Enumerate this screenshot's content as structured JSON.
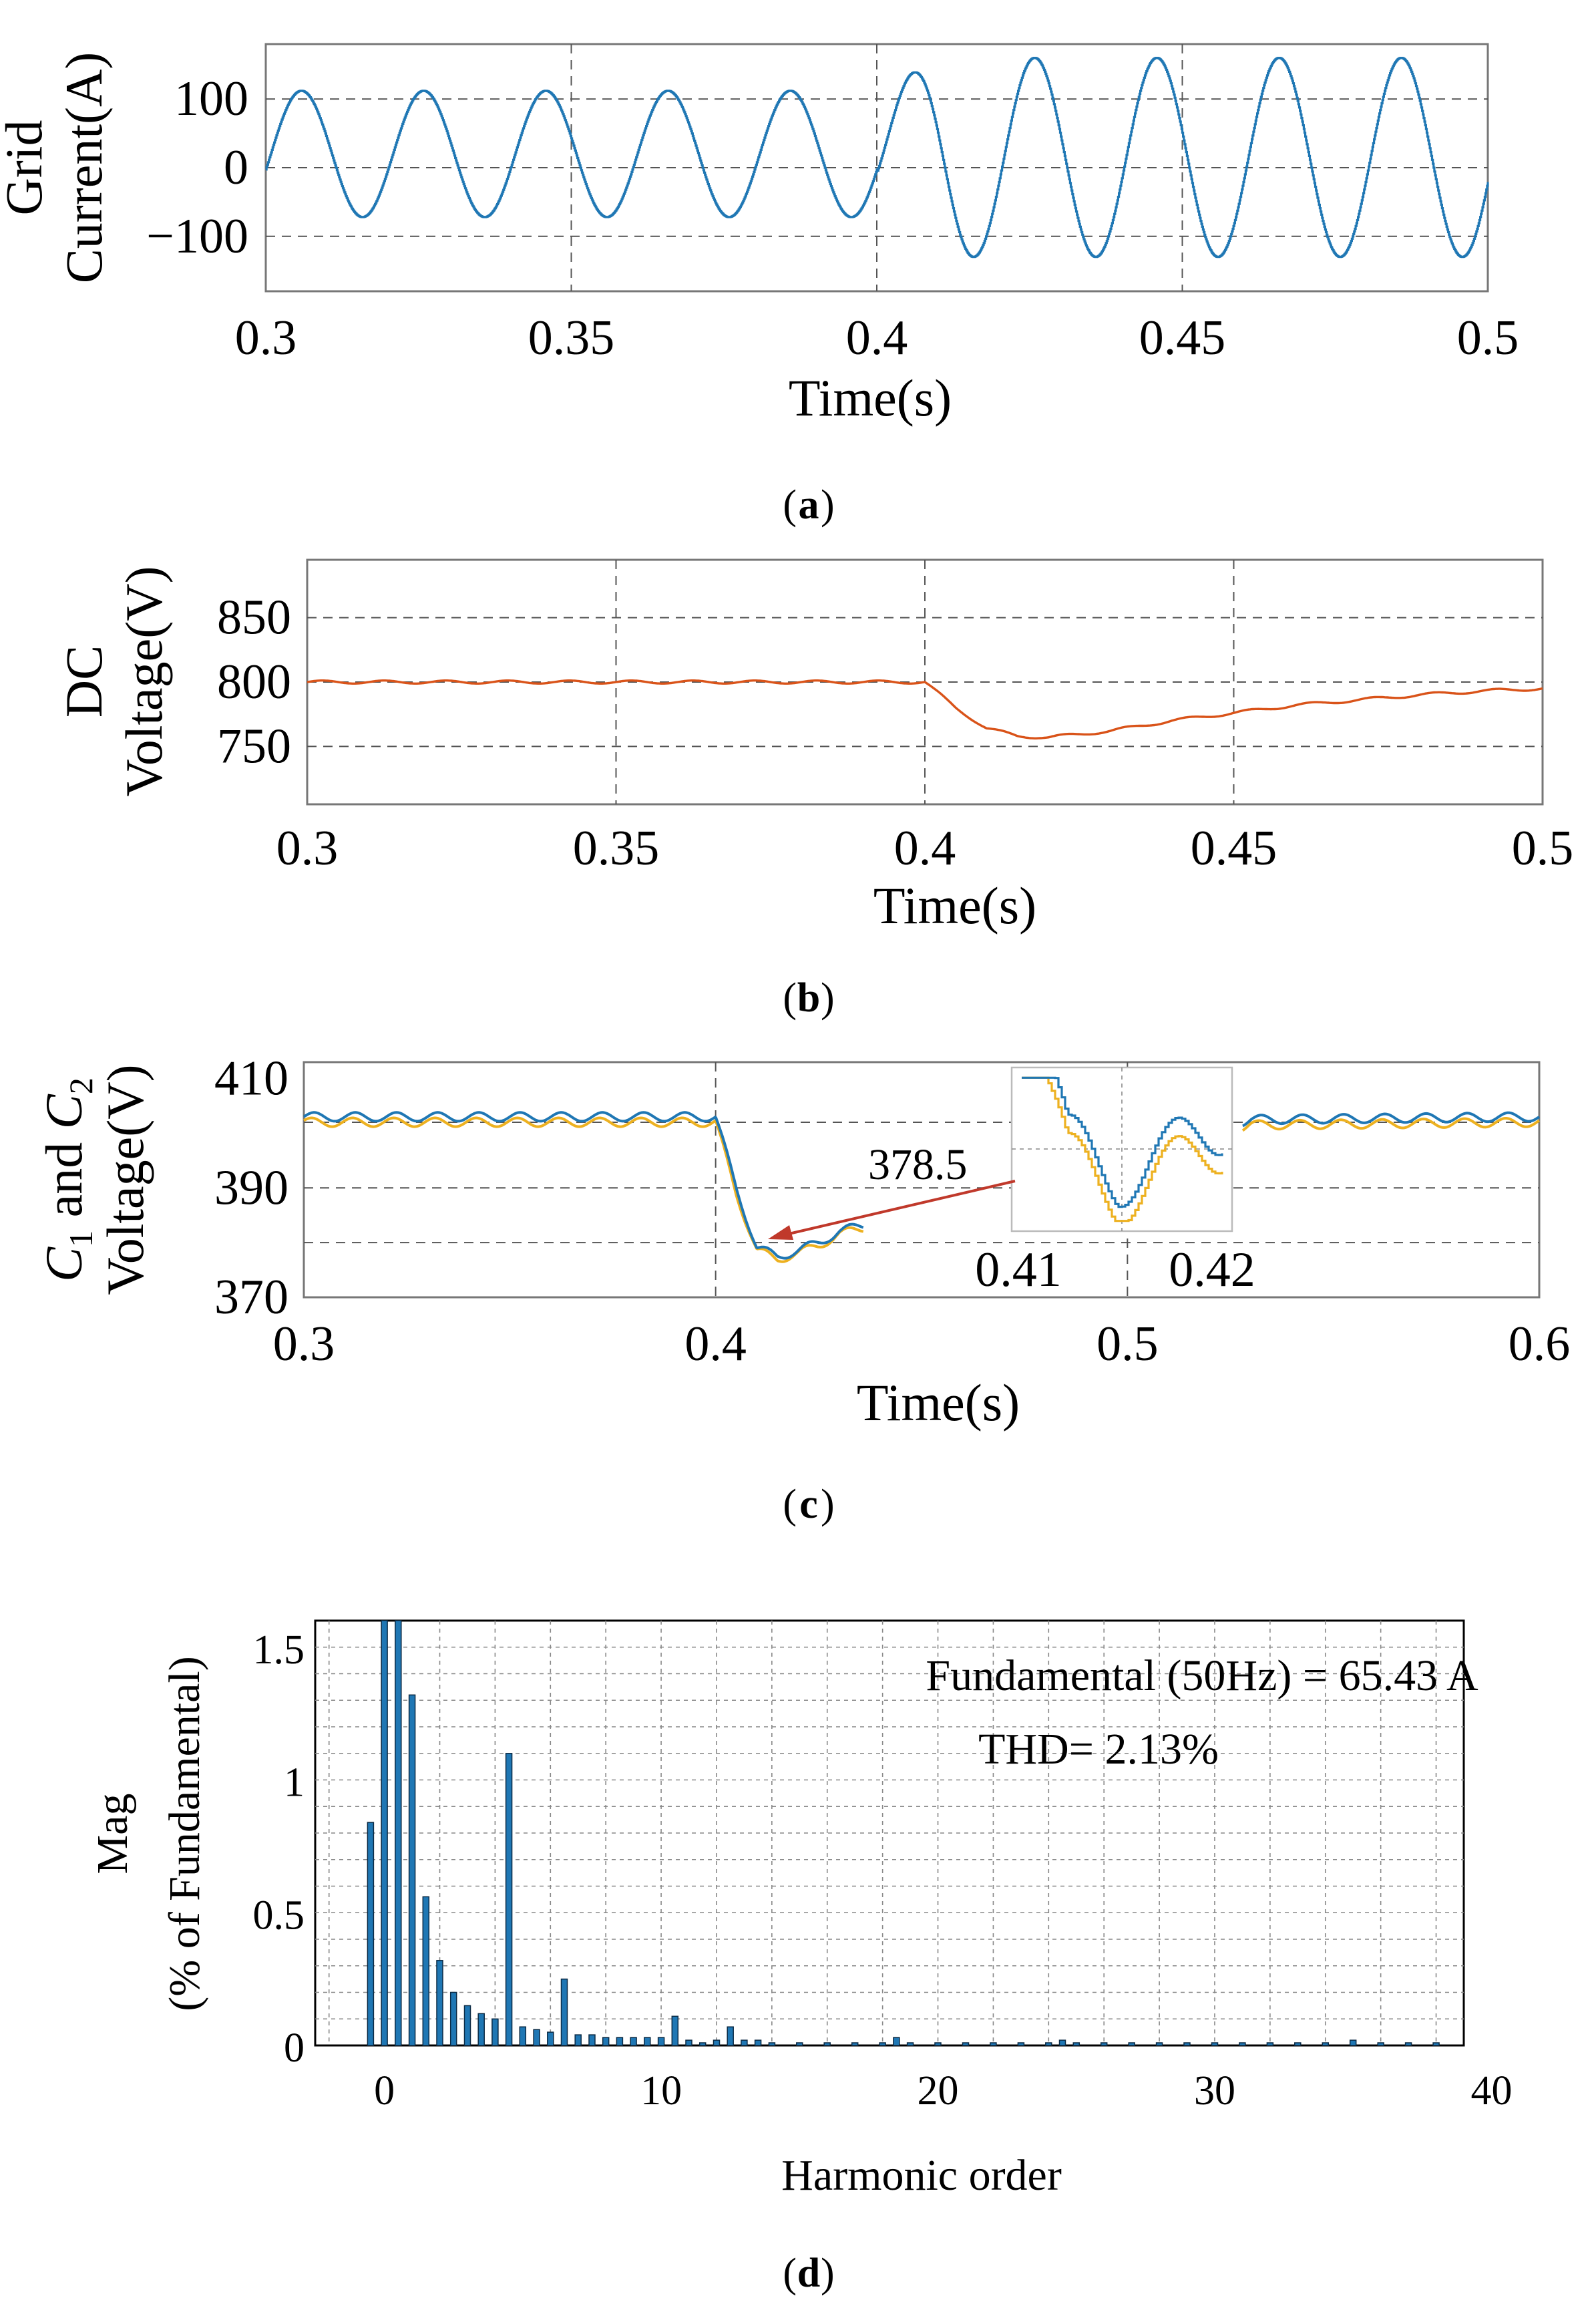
{
  "chart_data": [
    {
      "panel": "a",
      "type": "line",
      "caption": "a",
      "ylabel": [
        "Grid",
        "Current(A)"
      ],
      "xlabel": "Time(s)",
      "xlim": [
        0.3,
        0.5
      ],
      "ylim": [
        -180,
        180
      ],
      "xticks": [
        0.3,
        0.35,
        0.4,
        0.45,
        0.5
      ],
      "xtick_labels": [
        "0.3",
        "0.35",
        "0.4",
        "0.45",
        "0.5"
      ],
      "yticks": [
        100,
        0,
        -100
      ],
      "ytick_labels": [
        "100",
        "0",
        "−100"
      ],
      "series": [
        {
          "name": "grid current",
          "color": "#1f77b4",
          "segments": [
            {
              "t_start": 0.3,
              "t_end": 0.4,
              "amplitude": 92,
              "offset": 20,
              "freq_hz": 50
            },
            {
              "t_start": 0.4,
              "t_end": 0.5,
              "amplitude": 145,
              "offset": 15,
              "freq_hz": 50
            }
          ]
        }
      ]
    },
    {
      "panel": "b",
      "type": "line",
      "caption": "b",
      "ylabel": [
        "DC",
        "Voltage(V)"
      ],
      "xlabel": "Time(s)",
      "xlim": [
        0.3,
        0.5
      ],
      "ylim": [
        705,
        895
      ],
      "xticks": [
        0.3,
        0.35,
        0.4,
        0.45,
        0.5
      ],
      "xtick_labels": [
        "0.3",
        "0.35",
        "0.4",
        "0.45",
        "0.5"
      ],
      "yticks": [
        850,
        800,
        750
      ],
      "ytick_labels": [
        "850",
        "800",
        "750"
      ],
      "series": [
        {
          "name": "DC voltage",
          "color": "#d95319",
          "points": [
            [
              0.3,
              800
            ],
            [
              0.4,
              800
            ],
            [
              0.405,
              780
            ],
            [
              0.41,
              764
            ],
            [
              0.415,
              758
            ],
            [
              0.42,
              757
            ],
            [
              0.43,
              762
            ],
            [
              0.44,
              770
            ],
            [
              0.45,
              776
            ],
            [
              0.46,
              782
            ],
            [
              0.47,
              786
            ],
            [
              0.48,
              790
            ],
            [
              0.49,
              793
            ],
            [
              0.5,
              795
            ]
          ]
        }
      ]
    },
    {
      "panel": "c",
      "type": "line",
      "caption": "c",
      "ylabel": [
        "C1 and C2",
        "Voltage(V)"
      ],
      "xlabel": "Time(s)",
      "xlim": [
        0.3,
        0.6
      ],
      "ylim": [
        370,
        413
      ],
      "xticks": [
        0.3,
        0.4,
        0.5,
        0.6
      ],
      "xtick_labels": [
        "0.3",
        "0.4",
        "0.5",
        "0.6"
      ],
      "yticks": [
        410,
        390,
        370
      ],
      "ytick_labels": [
        "410",
        "390",
        "370"
      ],
      "annotation": "378.5",
      "inset_xtick_labels": [
        "0.41",
        "0.42"
      ],
      "series": [
        {
          "name": "C1",
          "color": "#1f77b4",
          "points": [
            [
              0.3,
              403
            ],
            [
              0.4,
              403
            ],
            [
              0.405,
              390
            ],
            [
              0.41,
              379
            ],
            [
              0.415,
              377.5
            ],
            [
              0.42,
              378.5
            ],
            [
              0.425,
              380
            ],
            [
              0.43,
              382
            ],
            [
              0.435,
              383
            ],
            [
              0.53,
              402.5
            ],
            [
              0.6,
              403
            ]
          ]
        },
        {
          "name": "C2",
          "color": "#edb120",
          "points": [
            [
              0.3,
              402
            ],
            [
              0.4,
              402
            ],
            [
              0.405,
              389
            ],
            [
              0.41,
              378.5
            ],
            [
              0.415,
              377
            ],
            [
              0.42,
              378
            ],
            [
              0.425,
              379.5
            ],
            [
              0.43,
              381.5
            ],
            [
              0.435,
              382.5
            ],
            [
              0.53,
              401.5
            ],
            [
              0.6,
              402
            ]
          ]
        }
      ]
    },
    {
      "panel": "d",
      "type": "bar",
      "caption": "d",
      "ylabel": [
        "Mag",
        "(% of Fundamental)"
      ],
      "xlabel": "Harmonic order",
      "xlim": [
        -2.5,
        39
      ],
      "ylim": [
        0,
        1.6
      ],
      "xticks": [
        0,
        10,
        20,
        30,
        40
      ],
      "xtick_labels": [
        "0",
        "10",
        "20",
        "30",
        "40"
      ],
      "yticks": [
        0,
        0.5,
        1,
        1.5
      ],
      "ytick_labels": [
        "0",
        "0.5",
        "1",
        "1.5"
      ],
      "annotations": [
        "Fundamental (50Hz) = 65.43 A",
        "THD= 2.13%"
      ],
      "bar_color": "#1f77b4",
      "harmonics": [
        -0.5,
        -0.25,
        0,
        0.25,
        0.5,
        0.75,
        1,
        1.25,
        1.5,
        1.75,
        2,
        2.25,
        2.5,
        2.75,
        3,
        3.25,
        3.5,
        3.75,
        4,
        4.25,
        4.5,
        4.75,
        5,
        5.25,
        5.5,
        5.75,
        6,
        6.25,
        6.5,
        6.75,
        7,
        7.25,
        7.5,
        7.75,
        8,
        8.25,
        8.5,
        8.75,
        9,
        9.25,
        9.5,
        9.75,
        10,
        10.25,
        10.5,
        10.75,
        11,
        11.5,
        12,
        12.5,
        13,
        13.5,
        14,
        15,
        16,
        17,
        18,
        18.5,
        19,
        20,
        21,
        22,
        23,
        24,
        24.5,
        25,
        26,
        27,
        28,
        29,
        30,
        31,
        32,
        33,
        34,
        35,
        36,
        37,
        38
      ],
      "values": [
        0.84,
        0.0,
        1.6,
        0.0,
        1.6,
        0.0,
        1.32,
        0.0,
        0.56,
        0.0,
        0.32,
        0.0,
        0.2,
        0.0,
        0.15,
        0.0,
        0.12,
        0.0,
        0.1,
        0.0,
        1.1,
        0.0,
        0.07,
        0.0,
        0.06,
        0.0,
        0.05,
        0.0,
        0.25,
        0.0,
        0.04,
        0.0,
        0.04,
        0.0,
        0.03,
        0.0,
        0.03,
        0.0,
        0.03,
        0.0,
        0.03,
        0.0,
        0.03,
        0.0,
        0.11,
        0.0,
        0.02,
        0.01,
        0.02,
        0.07,
        0.02,
        0.02,
        0.01,
        0.01,
        0.01,
        0.01,
        0.01,
        0.03,
        0.01,
        0.01,
        0.01,
        0.01,
        0.01,
        0.01,
        0.02,
        0.01,
        0.01,
        0.01,
        0.01,
        0.01,
        0.01,
        0.01,
        0.01,
        0.01,
        0.01,
        0.02,
        0.01,
        0.01,
        0.01
      ]
    }
  ]
}
